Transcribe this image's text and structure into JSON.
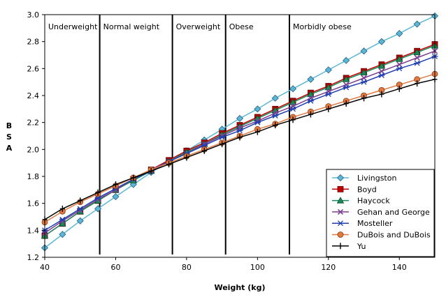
{
  "chart_data": {
    "type": "line",
    "title": "",
    "xlabel": "Weight (kg)",
    "ylabel": "BSA",
    "xlim": [
      40,
      150
    ],
    "ylim": [
      1.2,
      3.0
    ],
    "x_ticks": [
      40,
      60,
      80,
      100,
      120,
      140
    ],
    "y_ticks": [
      1.2,
      1.4,
      1.6,
      1.8,
      2.0,
      2.2,
      2.4,
      2.6,
      2.8,
      3.0
    ],
    "grid": false,
    "legend_position": "bottom-right",
    "x": [
      40,
      45,
      50,
      55,
      60,
      65,
      70,
      75,
      80,
      85,
      90,
      95,
      100,
      105,
      110,
      115,
      120,
      125,
      130,
      135,
      140,
      145,
      150
    ],
    "regions": [
      {
        "label": "Underweight",
        "start": 40,
        "end": 55.5
      },
      {
        "label": "Normal weight",
        "start": 55.5,
        "end": 76
      },
      {
        "label": "Overweight",
        "start": 76,
        "end": 91
      },
      {
        "label": "Obese",
        "start": 91,
        "end": 109
      },
      {
        "label": "Morbidly obese",
        "start": 109,
        "end": 150
      }
    ],
    "series": [
      {
        "name": "Livingston",
        "color": "#5bb7d6",
        "marker": "diamond",
        "values": [
          1.27,
          1.37,
          1.47,
          1.56,
          1.65,
          1.74,
          1.83,
          1.91,
          1.99,
          2.07,
          2.15,
          2.23,
          2.3,
          2.38,
          2.45,
          2.52,
          2.59,
          2.66,
          2.73,
          2.8,
          2.86,
          2.93,
          2.99
        ]
      },
      {
        "name": "Boyd",
        "color": "#c00000",
        "marker": "square",
        "values": [
          1.36,
          1.45,
          1.54,
          1.62,
          1.7,
          1.78,
          1.85,
          1.92,
          1.99,
          2.05,
          2.12,
          2.18,
          2.24,
          2.3,
          2.36,
          2.42,
          2.47,
          2.53,
          2.58,
          2.63,
          2.68,
          2.73,
          2.78
        ]
      },
      {
        "name": "Haycock",
        "color": "#1a8a5a",
        "marker": "triangle",
        "values": [
          1.36,
          1.45,
          1.54,
          1.62,
          1.7,
          1.77,
          1.84,
          1.91,
          1.98,
          2.04,
          2.11,
          2.17,
          2.23,
          2.29,
          2.35,
          2.41,
          2.46,
          2.52,
          2.57,
          2.62,
          2.67,
          2.72,
          2.77
        ]
      },
      {
        "name": "Gehan and George",
        "color": "#7a3f8f",
        "marker": "x",
        "values": [
          1.38,
          1.47,
          1.55,
          1.63,
          1.7,
          1.78,
          1.85,
          1.91,
          1.97,
          2.04,
          2.1,
          2.16,
          2.21,
          2.27,
          2.32,
          2.38,
          2.43,
          2.48,
          2.53,
          2.58,
          2.63,
          2.68,
          2.73
        ]
      },
      {
        "name": "Mosteller",
        "color": "#1f3fb0",
        "marker": "star",
        "values": [
          1.4,
          1.48,
          1.56,
          1.64,
          1.71,
          1.78,
          1.84,
          1.91,
          1.97,
          2.03,
          2.09,
          2.14,
          2.2,
          2.25,
          2.3,
          2.36,
          2.41,
          2.46,
          2.5,
          2.55,
          2.6,
          2.64,
          2.69
        ]
      },
      {
        "name": "DuBois and DuBois",
        "color": "#e07a40",
        "marker": "circle",
        "values": [
          1.46,
          1.54,
          1.61,
          1.67,
          1.73,
          1.79,
          1.85,
          1.9,
          1.95,
          2.0,
          2.05,
          2.1,
          2.15,
          2.19,
          2.24,
          2.28,
          2.32,
          2.36,
          2.4,
          2.44,
          2.48,
          2.52,
          2.56
        ]
      },
      {
        "name": "Yu",
        "color": "#000000",
        "marker": "plus",
        "values": [
          1.48,
          1.56,
          1.62,
          1.68,
          1.74,
          1.79,
          1.84,
          1.89,
          1.94,
          1.99,
          2.04,
          2.09,
          2.13,
          2.18,
          2.22,
          2.26,
          2.3,
          2.34,
          2.38,
          2.41,
          2.45,
          2.49,
          2.52
        ]
      }
    ]
  }
}
